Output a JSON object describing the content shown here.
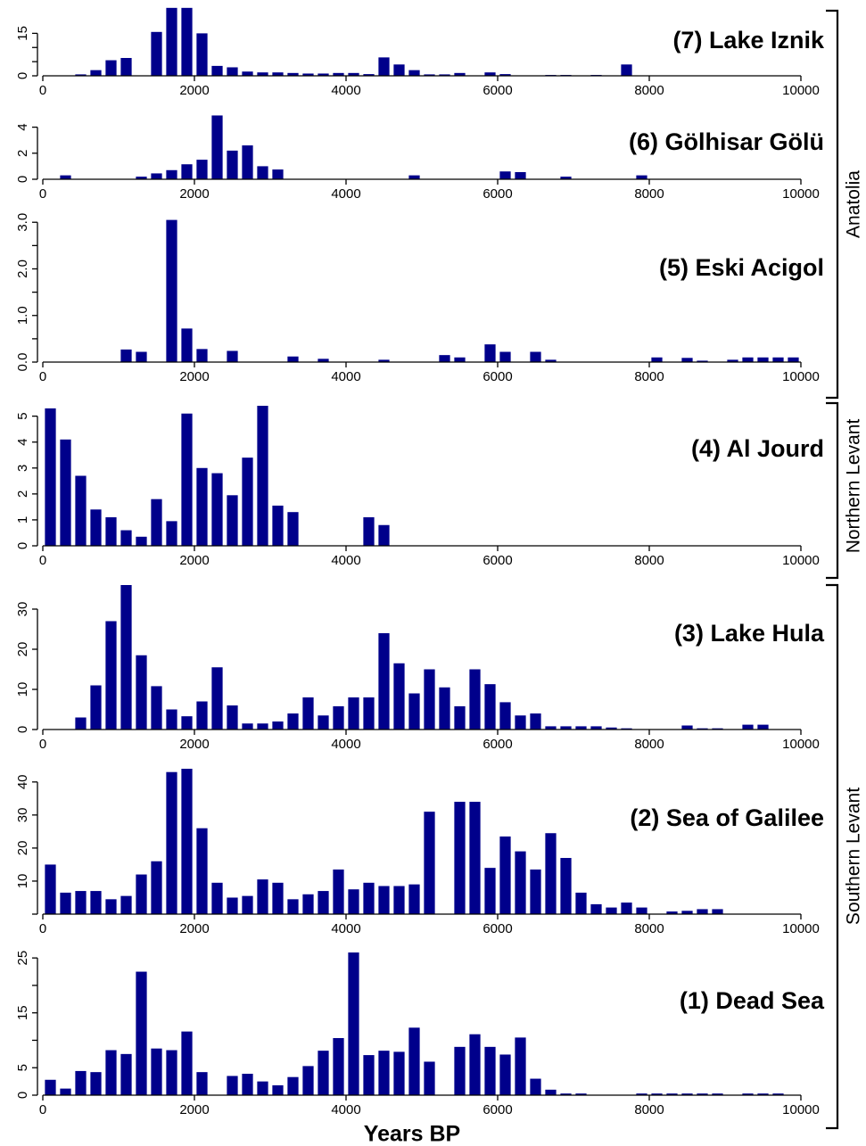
{
  "chart_data": {
    "type": "bar",
    "xlabel": "Years BP",
    "xlim": [
      0,
      10000
    ],
    "bin_width_years": 200,
    "x_ticks": [
      0,
      2000,
      4000,
      6000,
      8000,
      10000
    ],
    "x_tick_labels": [
      "0",
      "2000",
      "4000",
      "6000",
      "8000",
      "10000"
    ],
    "bar_color": "#00008B",
    "groups": [
      {
        "name": "Anatolia",
        "panels": [
          "(7) Lake Iznik",
          "(6) Gölhisar Gölü",
          "(5) Eski Acigol"
        ]
      },
      {
        "name": "Northern Levant",
        "panels": [
          "(4) Al Jourd"
        ]
      },
      {
        "name": "Southern Levant",
        "panels": [
          "(3) Lake Hula",
          "(2) Sea of Galilee",
          "(1) Dead Sea"
        ]
      }
    ],
    "panels": [
      {
        "title": "(7) Lake Iznik",
        "ylim": [
          0,
          23
        ],
        "y_ticks": [
          0,
          5,
          10,
          15
        ],
        "y_tick_labels": [
          "0",
          "",
          "",
          "15"
        ],
        "x": [
          500,
          700,
          900,
          1100,
          1500,
          1700,
          1900,
          2100,
          2300,
          2500,
          2700,
          2900,
          3100,
          3300,
          3500,
          3700,
          3900,
          4100,
          4300,
          4500,
          4700,
          4900,
          5100,
          5300,
          5500,
          5900,
          6100,
          6700,
          6900,
          7300,
          7700
        ],
        "values": [
          0.5,
          2,
          5.5,
          6.3,
          15.5,
          24,
          24,
          15,
          3.5,
          3,
          1.5,
          1.2,
          1.2,
          1,
          0.8,
          0.8,
          1,
          1,
          0.6,
          6.5,
          4,
          2,
          0.5,
          0.5,
          1,
          1.2,
          0.6,
          0.3,
          0.3,
          0.3,
          4
        ]
      },
      {
        "title": "(6) Gölhisar Gölü",
        "ylim": [
          0,
          5
        ],
        "y_ticks": [
          0,
          2,
          4
        ],
        "y_tick_labels": [
          "0",
          "2",
          "4"
        ],
        "x": [
          300,
          1300,
          1500,
          1700,
          1900,
          2100,
          2300,
          2500,
          2700,
          2900,
          3100,
          4900,
          6100,
          6300,
          6900,
          7900
        ],
        "values": [
          0.3,
          0.2,
          0.45,
          0.7,
          1.15,
          1.5,
          4.9,
          2.2,
          2.6,
          1,
          0.75,
          0.3,
          0.6,
          0.55,
          0.2,
          0.3
        ]
      },
      {
        "title": "(5) Eski Acigol",
        "ylim": [
          0,
          3.1
        ],
        "y_ticks": [
          0,
          0.5,
          1,
          1.5,
          2,
          2.5,
          3
        ],
        "y_tick_labels": [
          "0.0",
          "",
          "1.0",
          "",
          "2.0",
          "",
          "3.0"
        ],
        "x": [
          1100,
          1300,
          1700,
          1900,
          2100,
          2500,
          3300,
          3700,
          4500,
          5300,
          5500,
          5900,
          6100,
          6500,
          6700,
          8100,
          8500,
          8700,
          9100,
          9300,
          9500,
          9700,
          9900
        ],
        "values": [
          0.27,
          0.22,
          3.05,
          0.72,
          0.28,
          0.24,
          0.12,
          0.07,
          0.05,
          0.15,
          0.1,
          0.38,
          0.22,
          0.22,
          0.05,
          0.1,
          0.09,
          0.03,
          0.05,
          0.1,
          0.1,
          0.1,
          0.1
        ]
      },
      {
        "title": "(4) Al Jourd",
        "ylim": [
          0,
          5.4
        ],
        "y_ticks": [
          0,
          1,
          2,
          3,
          4,
          5
        ],
        "y_tick_labels": [
          "0",
          "1",
          "2",
          "3",
          "4",
          "5"
        ],
        "x": [
          100,
          300,
          500,
          700,
          900,
          1100,
          1300,
          1500,
          1700,
          1900,
          2100,
          2300,
          2500,
          2700,
          2900,
          3100,
          3300,
          4300,
          4500
        ],
        "values": [
          5.3,
          4.1,
          2.7,
          1.4,
          1.1,
          0.6,
          0.35,
          1.8,
          0.95,
          5.1,
          3,
          2.8,
          1.95,
          3.4,
          5.4,
          1.55,
          1.3,
          1.1,
          0.8
        ]
      },
      {
        "title": "(3) Lake Hula",
        "ylim": [
          0,
          36
        ],
        "y_ticks": [
          0,
          10,
          20,
          30
        ],
        "y_tick_labels": [
          "0",
          "10",
          "20",
          "30"
        ],
        "x": [
          500,
          700,
          900,
          1100,
          1300,
          1500,
          1700,
          1900,
          2100,
          2300,
          2500,
          2700,
          2900,
          3100,
          3300,
          3500,
          3700,
          3900,
          4100,
          4300,
          4500,
          4700,
          4900,
          5100,
          5300,
          5500,
          5700,
          5900,
          6100,
          6300,
          6500,
          6700,
          6900,
          7100,
          7300,
          7500,
          7700,
          8500,
          8700,
          8900,
          9300,
          9500
        ],
        "values": [
          3,
          11,
          27,
          36,
          18.5,
          10.8,
          5,
          3.3,
          7,
          15.5,
          6,
          1.5,
          1.5,
          2,
          4,
          8,
          3.5,
          5.8,
          8,
          8,
          24,
          16.5,
          9,
          15,
          10.5,
          5.8,
          15,
          11.3,
          6.8,
          3.5,
          4,
          0.8,
          0.8,
          0.8,
          0.8,
          0.5,
          0.3,
          1,
          0.3,
          0.3,
          1.2,
          1.2
        ]
      },
      {
        "title": "(2) Sea of Galilee",
        "ylim": [
          0,
          44
        ],
        "y_ticks": [
          0,
          10,
          20,
          30,
          40
        ],
        "y_tick_labels": [
          "",
          "10",
          "20",
          "30",
          "40"
        ],
        "x": [
          100,
          300,
          500,
          700,
          900,
          1100,
          1300,
          1500,
          1700,
          1900,
          2100,
          2300,
          2500,
          2700,
          2900,
          3100,
          3300,
          3500,
          3700,
          3900,
          4100,
          4300,
          4500,
          4700,
          4900,
          5100,
          5500,
          5700,
          5900,
          6100,
          6300,
          6500,
          6700,
          6900,
          7100,
          7300,
          7500,
          7700,
          7900,
          8300,
          8500,
          8700,
          8900
        ],
        "values": [
          15,
          6.5,
          7,
          7,
          4.5,
          5.5,
          12,
          16,
          43,
          44,
          26,
          9.5,
          5,
          5.5,
          10.5,
          9.5,
          4.5,
          6,
          7,
          13.5,
          7.5,
          9.5,
          8.5,
          8.5,
          9,
          31,
          34,
          34,
          14,
          23.5,
          19,
          13.5,
          24.5,
          17,
          6.5,
          3,
          2,
          3.5,
          2,
          0.8,
          1,
          1.5,
          1.5
        ]
      },
      {
        "title": "(1) Dead Sea",
        "ylim": [
          0,
          26
        ],
        "y_ticks": [
          0,
          5,
          10,
          15,
          20,
          25
        ],
        "y_tick_labels": [
          "0",
          "5",
          "",
          "15",
          "",
          "25"
        ],
        "x": [
          100,
          300,
          500,
          700,
          900,
          1100,
          1300,
          1500,
          1700,
          1900,
          2100,
          2500,
          2700,
          2900,
          3100,
          3300,
          3500,
          3700,
          3900,
          4100,
          4300,
          4500,
          4700,
          4900,
          5100,
          5500,
          5700,
          5900,
          6100,
          6300,
          6500,
          6700,
          6900,
          7100,
          7900,
          8100,
          8300,
          8500,
          8700,
          8900,
          9300,
          9500,
          9700
        ],
        "values": [
          2.8,
          1.2,
          4.4,
          4.2,
          8.2,
          7.5,
          22.5,
          8.5,
          8.2,
          11.6,
          4.2,
          3.5,
          3.9,
          2.5,
          1.8,
          3.3,
          5.3,
          8.1,
          10.4,
          26,
          7.3,
          8.1,
          7.9,
          12.3,
          6.1,
          8.8,
          11.1,
          8.8,
          7.4,
          10.5,
          3,
          1,
          0.3,
          0.3,
          0.3,
          0.3,
          0.3,
          0.3,
          0.3,
          0.3,
          0.3,
          0.3,
          0.3
        ]
      }
    ]
  }
}
